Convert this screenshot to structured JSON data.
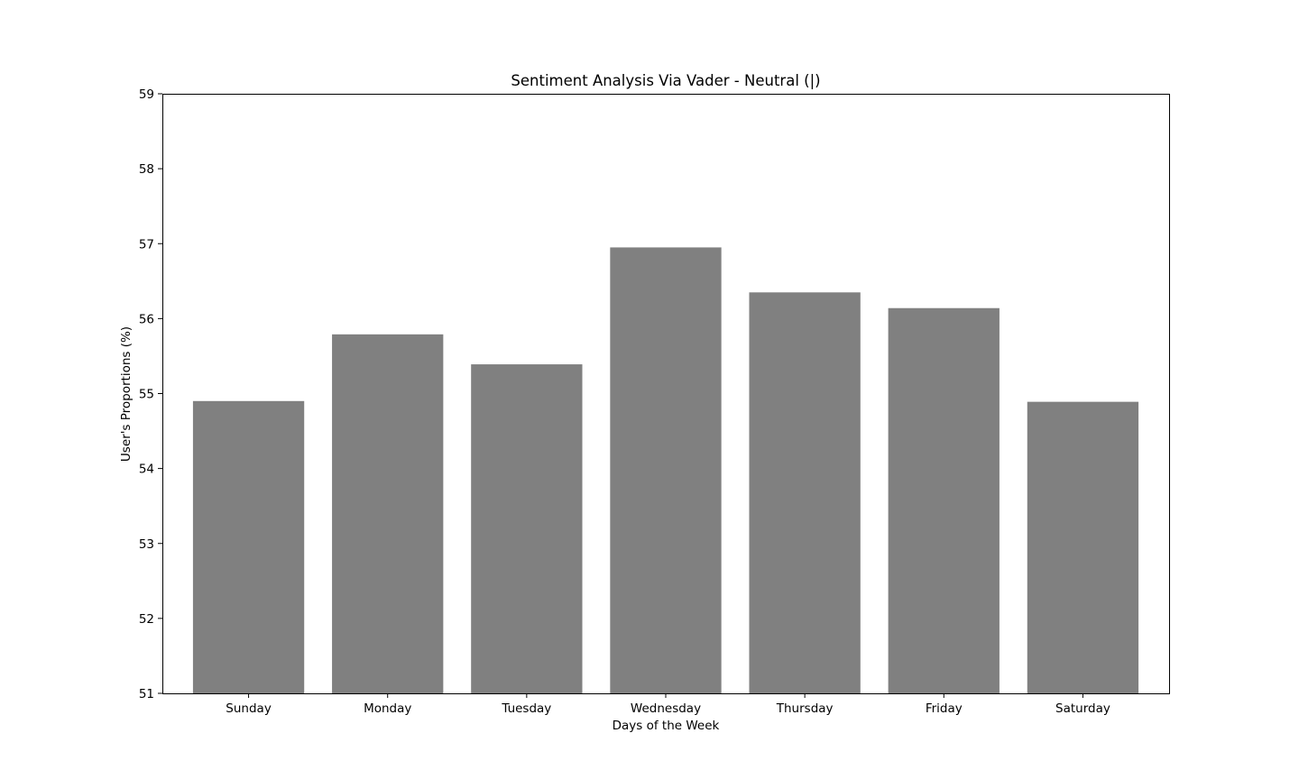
{
  "chart_data": {
    "type": "bar",
    "title": "Sentiment Analysis Via Vader - Neutral (|)",
    "xlabel": "Days of the Week",
    "ylabel": "User's Proportions (%)",
    "categories": [
      "Sunday",
      "Monday",
      "Tuesday",
      "Wednesday",
      "Thursday",
      "Friday",
      "Saturday"
    ],
    "values": [
      54.9,
      55.79,
      55.39,
      56.95,
      56.35,
      56.14,
      54.89
    ],
    "ylim": [
      51,
      59
    ],
    "yticks": [
      "51",
      "52",
      "53",
      "54",
      "55",
      "56",
      "57",
      "58",
      "59"
    ],
    "grid": false,
    "bar_color": "#808080"
  }
}
